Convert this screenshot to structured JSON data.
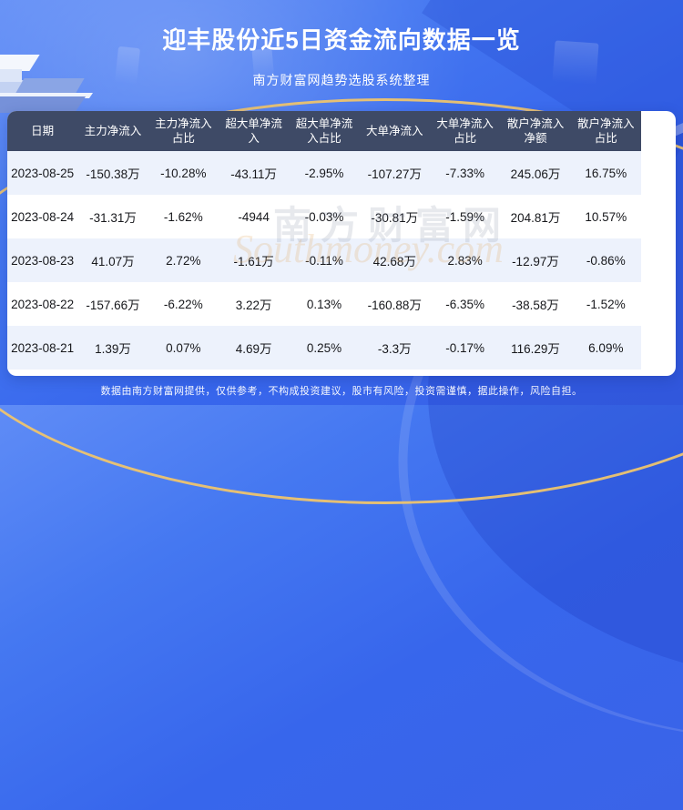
{
  "header": {
    "title": "迎丰股份近5日资金流向数据一览",
    "subtitle": "南方财富网趋势选股系统整理"
  },
  "watermark": {
    "cn": "南方财富网",
    "en": "Southmoney.com"
  },
  "chart_data": {
    "type": "table",
    "title": "迎丰股份近5日资金流向数据一览",
    "columns": [
      "日期",
      "主力净流入",
      "主力净流入占比",
      "超大单净流入",
      "超大单净流入占比",
      "大单净流入",
      "大单净流入占比",
      "散户净流入净额",
      "散户净流入占比"
    ],
    "rows": [
      [
        "2023-08-25",
        "-150.38万",
        "-10.28%",
        "-43.11万",
        "-2.95%",
        "-107.27万",
        "-7.33%",
        "245.06万",
        "16.75%"
      ],
      [
        "2023-08-24",
        "-31.31万",
        "-1.62%",
        "-4944",
        "-0.03%",
        "-30.81万",
        "-1.59%",
        "204.81万",
        "10.57%"
      ],
      [
        "2023-08-23",
        "41.07万",
        "2.72%",
        "-1.61万",
        "-0.11%",
        "42.68万",
        "2.83%",
        "-12.97万",
        "-0.86%"
      ],
      [
        "2023-08-22",
        "-157.66万",
        "-6.22%",
        "3.22万",
        "0.13%",
        "-160.88万",
        "-6.35%",
        "-38.58万",
        "-1.52%"
      ],
      [
        "2023-08-21",
        "1.39万",
        "0.07%",
        "4.69万",
        "0.25%",
        "-3.3万",
        "-0.17%",
        "116.29万",
        "6.09%"
      ]
    ]
  },
  "footer": {
    "disclaimer": "数据由南方财富网提供，仅供参考，不构成投资建议，股市有风险，投资需谨慎，据此操作，风险自担。"
  },
  "colors": {
    "background_blue": "#3a68ec",
    "table_header_navy": "#3e4a66",
    "row_alt_blue": "#edf2fc",
    "gold_accent": "#eec46e",
    "text_dark": "#17181c"
  }
}
